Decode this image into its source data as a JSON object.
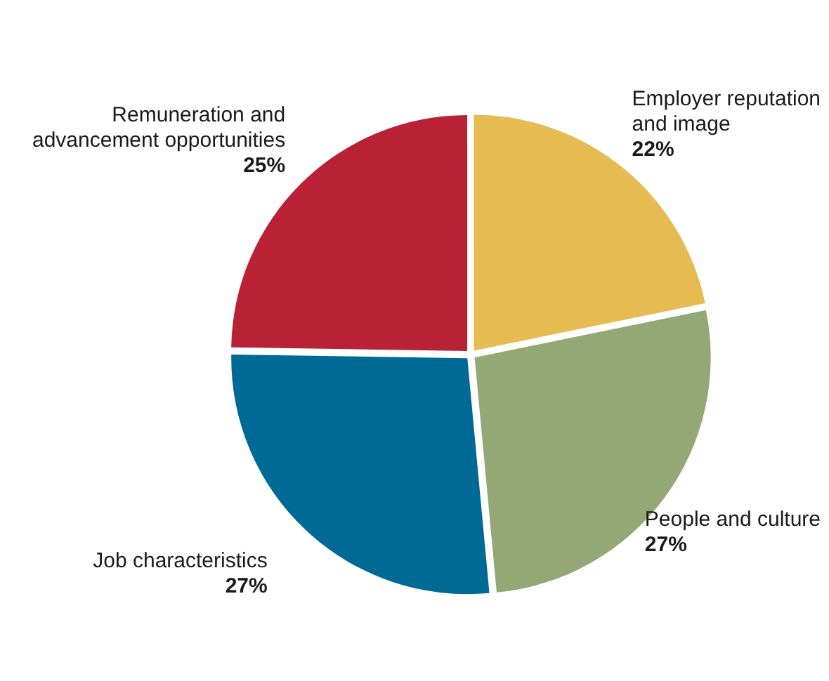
{
  "chart_data": {
    "type": "pie",
    "categories": [
      "Employer reputation\nand image",
      "People and culture",
      "Job characteristics",
      "Remuneration and\nadvancement opportunities"
    ],
    "values": [
      22,
      27,
      27,
      25
    ],
    "colors": [
      "#e6bc52",
      "#93a874",
      "#006a96",
      "#b82234"
    ],
    "value_labels": [
      "22%",
      "27%",
      "27%",
      "25%"
    ],
    "legend": false
  }
}
